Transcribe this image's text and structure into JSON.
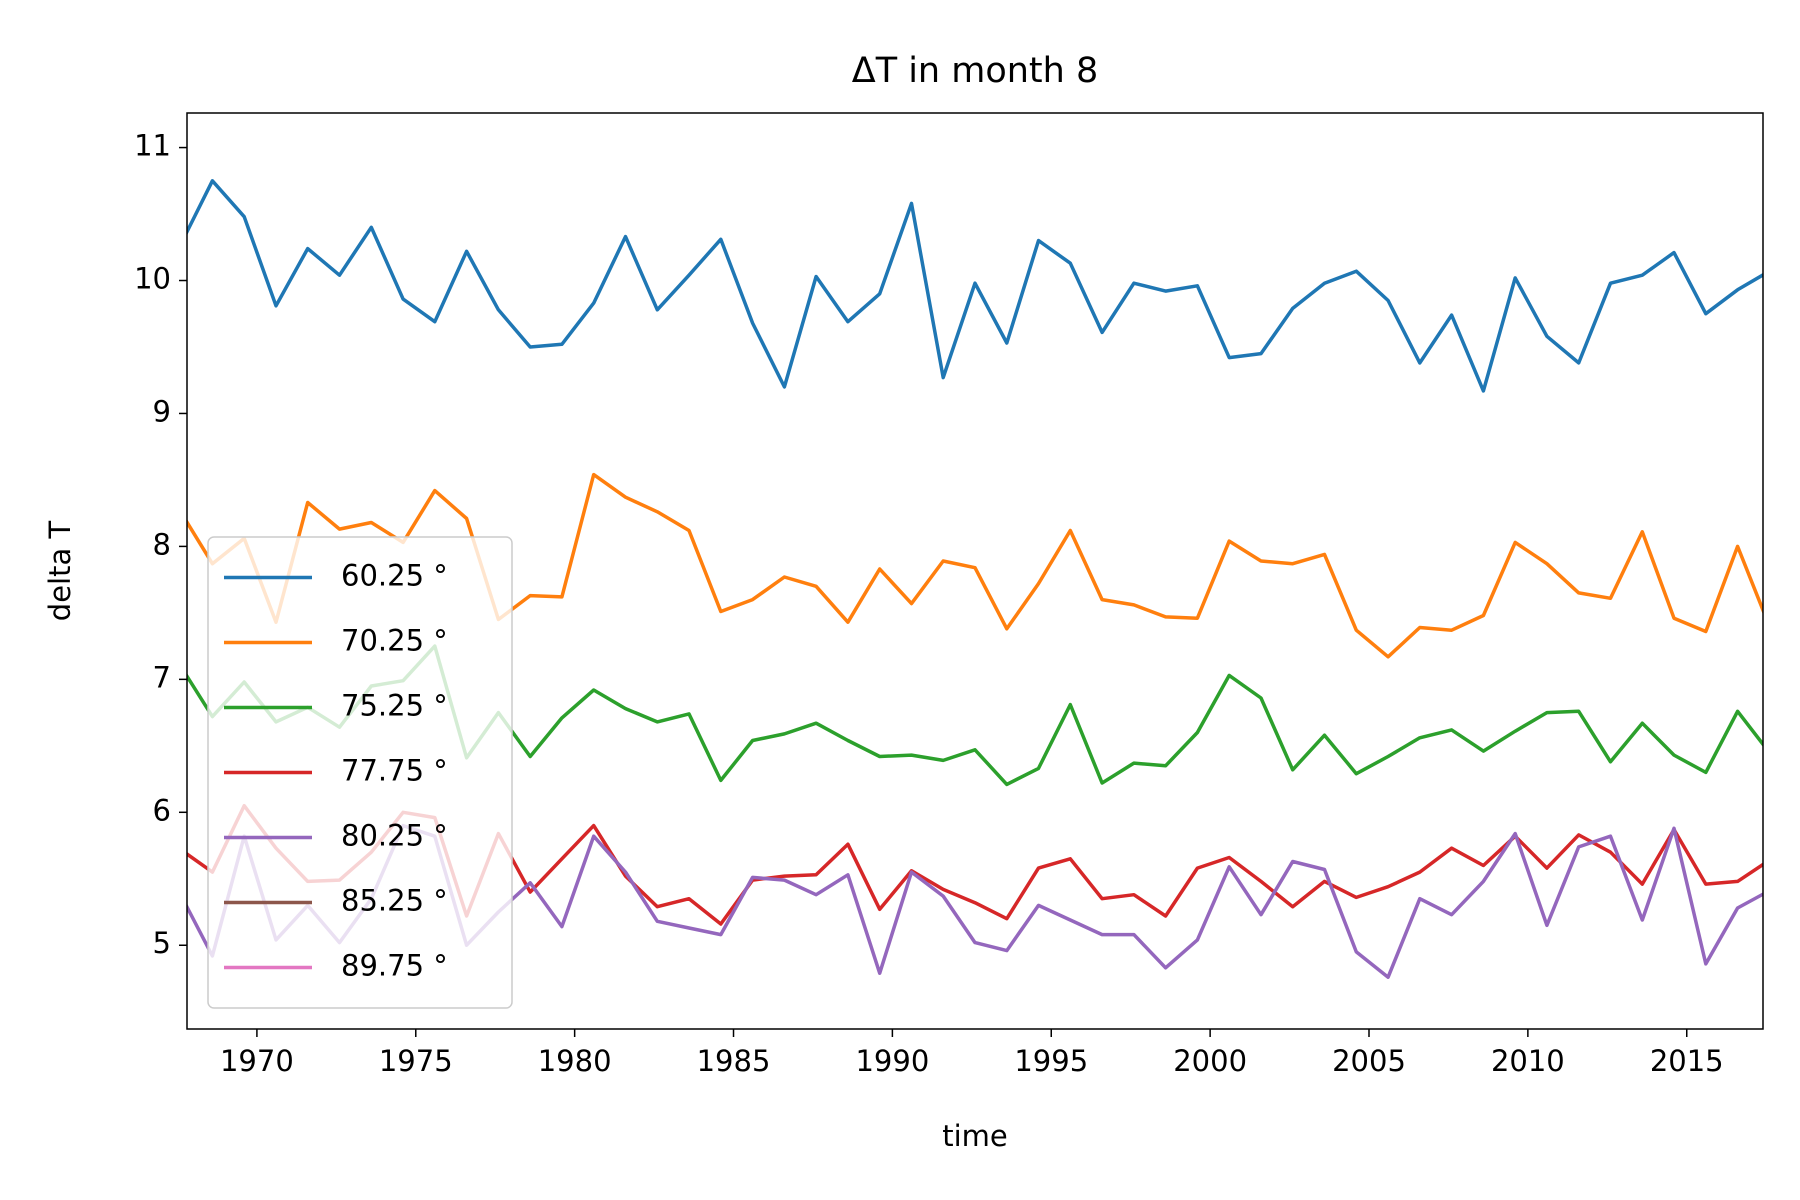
{
  "chart_data": {
    "type": "line",
    "title": "ΔT in month 8",
    "x_label": "time",
    "y_label": "delta T",
    "x": [
      1967.6,
      1968.6,
      1969.6,
      1970.6,
      1971.6,
      1972.6,
      1973.6,
      1974.6,
      1975.6,
      1976.6,
      1977.6,
      1978.6,
      1979.6,
      1980.6,
      1981.6,
      1982.6,
      1983.6,
      1984.6,
      1985.6,
      1986.6,
      1987.6,
      1988.6,
      1989.6,
      1990.6,
      1991.6,
      1992.6,
      1993.6,
      1994.6,
      1995.6,
      1996.6,
      1997.6,
      1998.6,
      1999.6,
      2000.6,
      2001.6,
      2002.6,
      2003.6,
      2004.6,
      2005.6,
      2006.6,
      2007.6,
      2008.6,
      2009.6,
      2010.6,
      2011.6,
      2012.6,
      2013.6,
      2014.6,
      2015.6,
      2016.6,
      2017.6
    ],
    "series": [
      {
        "name": "60.25 °",
        "color": "#1f77b4",
        "values": [
          10.27,
          10.75,
          10.48,
          9.81,
          10.24,
          10.04,
          10.4,
          9.86,
          9.69,
          10.22,
          9.78,
          9.5,
          9.52,
          9.83,
          10.33,
          9.78,
          10.04,
          10.31,
          9.68,
          9.2,
          10.03,
          9.69,
          9.9,
          10.58,
          9.27,
          9.98,
          9.53,
          10.3,
          10.13,
          9.61,
          9.98,
          9.92,
          9.96,
          9.42,
          9.45,
          9.79,
          9.98,
          10.07,
          9.85,
          9.38,
          9.74,
          9.17,
          10.02,
          9.58,
          9.38,
          9.98,
          10.04,
          10.21,
          9.75,
          9.93,
          10.07
        ]
      },
      {
        "name": "70.25 °",
        "color": "#ff7f0e",
        "values": [
          8.26,
          7.87,
          8.06,
          7.43,
          8.33,
          8.13,
          8.18,
          8.03,
          8.42,
          8.21,
          7.45,
          7.63,
          7.62,
          8.54,
          8.37,
          8.26,
          8.12,
          7.51,
          7.6,
          7.77,
          7.7,
          7.43,
          7.83,
          7.57,
          7.89,
          7.84,
          7.38,
          7.72,
          8.12,
          7.6,
          7.56,
          7.47,
          7.46,
          8.04,
          7.89,
          7.87,
          7.94,
          7.37,
          7.17,
          7.39,
          7.37,
          7.48,
          8.03,
          7.87,
          7.65,
          7.61,
          8.11,
          7.46,
          7.36,
          8.0,
          7.4
        ]
      },
      {
        "name": "75.25 °",
        "color": "#2ca02c",
        "values": [
          7.1,
          6.72,
          6.98,
          6.68,
          6.79,
          6.64,
          6.95,
          6.99,
          7.25,
          6.41,
          6.75,
          6.42,
          6.71,
          6.92,
          6.78,
          6.68,
          6.74,
          6.24,
          6.54,
          6.59,
          6.67,
          6.54,
          6.42,
          6.43,
          6.39,
          6.47,
          6.21,
          6.33,
          6.81,
          6.22,
          6.37,
          6.35,
          6.6,
          7.03,
          6.86,
          6.32,
          6.58,
          6.29,
          6.42,
          6.56,
          6.62,
          6.46,
          6.61,
          6.75,
          6.76,
          6.38,
          6.67,
          6.43,
          6.3,
          6.76,
          6.45
        ]
      },
      {
        "name": "77.75 °",
        "color": "#d62728",
        "values": [
          5.72,
          5.55,
          6.05,
          5.73,
          5.48,
          5.49,
          5.7,
          6.0,
          5.96,
          5.22,
          5.84,
          5.4,
          5.65,
          5.9,
          5.52,
          5.29,
          5.35,
          5.16,
          5.49,
          5.52,
          5.53,
          5.76,
          5.27,
          5.56,
          5.42,
          5.32,
          5.2,
          5.58,
          5.65,
          5.35,
          5.38,
          5.22,
          5.58,
          5.66,
          5.48,
          5.29,
          5.48,
          5.36,
          5.44,
          5.55,
          5.73,
          5.6,
          5.82,
          5.58,
          5.83,
          5.7,
          5.46,
          5.87,
          5.46,
          5.48,
          5.64
        ]
      },
      {
        "name": "80.25 °",
        "color": "#9467bd",
        "values": [
          5.38,
          4.92,
          5.82,
          5.04,
          5.3,
          5.02,
          5.35,
          5.9,
          5.82,
          5.0,
          5.25,
          5.47,
          5.14,
          5.82,
          5.55,
          5.18,
          5.13,
          5.08,
          5.51,
          5.49,
          5.38,
          5.53,
          4.79,
          5.55,
          5.37,
          5.02,
          4.96,
          5.3,
          5.19,
          5.08,
          5.08,
          4.83,
          5.04,
          5.59,
          5.23,
          5.63,
          5.57,
          4.95,
          4.76,
          5.35,
          5.23,
          5.48,
          5.84,
          5.15,
          5.74,
          5.82,
          5.19,
          5.88,
          4.86,
          5.28,
          5.41
        ]
      },
      {
        "name": "85.25 °",
        "color": "#8c564b",
        "values": [
          null,
          null,
          null,
          null,
          null,
          null,
          null,
          null,
          null,
          null,
          null,
          null,
          null,
          null,
          null,
          null,
          null,
          null,
          null,
          null,
          null,
          null,
          null,
          null,
          null,
          null,
          null,
          null,
          null,
          null,
          null,
          null,
          null,
          null,
          null,
          null,
          null,
          null,
          null,
          null,
          null,
          null,
          null,
          null,
          null,
          null,
          null,
          null,
          null,
          null,
          null
        ]
      },
      {
        "name": "89.75 °",
        "color": "#e377c2",
        "values": [
          null,
          null,
          null,
          null,
          null,
          null,
          null,
          null,
          null,
          null,
          null,
          null,
          null,
          null,
          null,
          null,
          null,
          null,
          null,
          null,
          null,
          null,
          null,
          null,
          null,
          null,
          null,
          null,
          null,
          null,
          null,
          null,
          null,
          null,
          null,
          null,
          null,
          null,
          null,
          null,
          null,
          null,
          null,
          null,
          null,
          null,
          null,
          null,
          null,
          null,
          null
        ]
      }
    ],
    "xlim": [
      1967.8,
      2017.4
    ],
    "xticks": [
      1970,
      1975,
      1980,
      1985,
      1990,
      1995,
      2000,
      2005,
      2010,
      2015
    ],
    "ylim": [
      4.37,
      11.26
    ],
    "yticks": [
      5,
      6,
      7,
      8,
      9,
      10,
      11
    ],
    "grid": false,
    "legend": "lower left"
  }
}
